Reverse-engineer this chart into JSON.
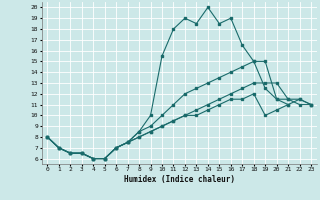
{
  "xlabel": "Humidex (Indice chaleur)",
  "background_color": "#cce8e8",
  "grid_color": "#ffffff",
  "line_color": "#1a6b6b",
  "xlim": [
    -0.5,
    23.5
  ],
  "ylim": [
    5.5,
    20.5
  ],
  "xticks": [
    0,
    1,
    2,
    3,
    4,
    5,
    6,
    7,
    8,
    9,
    10,
    11,
    12,
    13,
    14,
    15,
    16,
    17,
    18,
    19,
    20,
    21,
    22,
    23
  ],
  "yticks": [
    6,
    7,
    8,
    9,
    10,
    11,
    12,
    13,
    14,
    15,
    16,
    17,
    18,
    19,
    20
  ],
  "lines": [
    {
      "x": [
        0,
        1,
        2,
        3,
        4,
        5,
        6,
        7,
        8,
        9,
        10,
        11,
        12,
        13,
        14,
        15,
        16,
        17,
        18,
        19,
        20,
        21
      ],
      "y": [
        8,
        7,
        6.5,
        6.5,
        6,
        6,
        7,
        7.5,
        8.5,
        10,
        15.5,
        18,
        19,
        18.5,
        20,
        18.5,
        19,
        16.5,
        15,
        12.5,
        11.5,
        11
      ]
    },
    {
      "x": [
        0,
        1,
        2,
        3,
        4,
        5,
        6,
        7,
        8,
        9,
        10,
        11,
        12,
        13,
        14,
        15,
        16,
        17,
        18,
        19,
        20,
        21,
        22,
        23
      ],
      "y": [
        8,
        7,
        6.5,
        6.5,
        6,
        6,
        7,
        7.5,
        8.5,
        9,
        10,
        11,
        12,
        12.5,
        13,
        13.5,
        14,
        14.5,
        15,
        15,
        11.5,
        11.5,
        11.5,
        11
      ]
    },
    {
      "x": [
        0,
        1,
        2,
        3,
        4,
        5,
        6,
        7,
        8,
        9,
        10,
        11,
        12,
        13,
        14,
        15,
        16,
        17,
        18,
        19,
        20,
        21,
        22,
        23
      ],
      "y": [
        8,
        7,
        6.5,
        6.5,
        6,
        6,
        7,
        7.5,
        8,
        8.5,
        9,
        9.5,
        10,
        10.5,
        11,
        11.5,
        12,
        12.5,
        13,
        13,
        13,
        11.5,
        11,
        11
      ]
    },
    {
      "x": [
        0,
        1,
        2,
        3,
        4,
        5,
        6,
        7,
        8,
        9,
        10,
        11,
        12,
        13,
        14,
        15,
        16,
        17,
        18,
        19,
        20,
        21,
        22,
        23
      ],
      "y": [
        8,
        7,
        6.5,
        6.5,
        6,
        6,
        7,
        7.5,
        8,
        8.5,
        9,
        9.5,
        10,
        10,
        10.5,
        11,
        11.5,
        11.5,
        12,
        10,
        10.5,
        11,
        11.5,
        11
      ]
    }
  ]
}
